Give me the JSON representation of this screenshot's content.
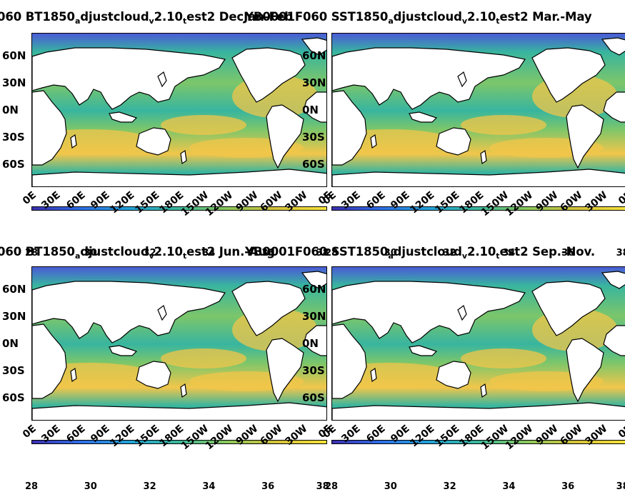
{
  "panels": [
    {
      "title_parts": [
        "060 BT1850",
        "a",
        "djustcloud",
        "v",
        "2.10",
        "t",
        "est2 DecJan-Feb"
      ],
      "overlap_title_parts": [
        "YB0001F060 SST1850",
        "a",
        "djustcloud",
        "v",
        "2.10",
        "t",
        "est2 Mar.-May"
      ]
    },
    {
      "title_parts": [
        "060 BT1850",
        "a",
        "djustcloud",
        "v",
        "2.10",
        "t",
        "est2 Jun.-Aug"
      ],
      "overlap_title_parts": [
        "YB0001F060 SST1850",
        "a",
        "djustcloud",
        "v",
        "2.10",
        "t",
        "est2 Sep.-Nov."
      ]
    }
  ],
  "map_titles": {
    "top_left": "060 BT1850adjustcloudv2.10test2 YB0001F060 SST1850",
    "top_right_season": "Mar.-May",
    "bottom_left": "060 BT1850adjustcloudv2.10test2 YB0001F060 SST1850",
    "bottom_right_season": "Sep.-Nov."
  },
  "lat_ticks": [
    "60N",
    "30N",
    "0N",
    "30S",
    "60S"
  ],
  "lon_ticks": [
    "0E",
    "30E",
    "60E",
    "90E",
    "120E",
    "150E",
    "180E",
    "150W",
    "120W",
    "90W",
    "60W",
    "30W",
    "0E"
  ],
  "colorbar": {
    "ticks": [
      "28",
      "30",
      "32",
      "34",
      "36",
      "38"
    ],
    "min": 28,
    "max": 38,
    "colors": [
      "#3b2fb0",
      "#2f6fe6",
      "#22a3d8",
      "#3cb89a",
      "#8cc85a",
      "#d6c23a",
      "#f7e33a"
    ]
  },
  "colors": {
    "land": "#ffffff",
    "coast": "#000000",
    "warm": "#f2c64a",
    "mid": "#7cc66a",
    "cool": "#38b59f",
    "polar": "#4a5bd6"
  }
}
